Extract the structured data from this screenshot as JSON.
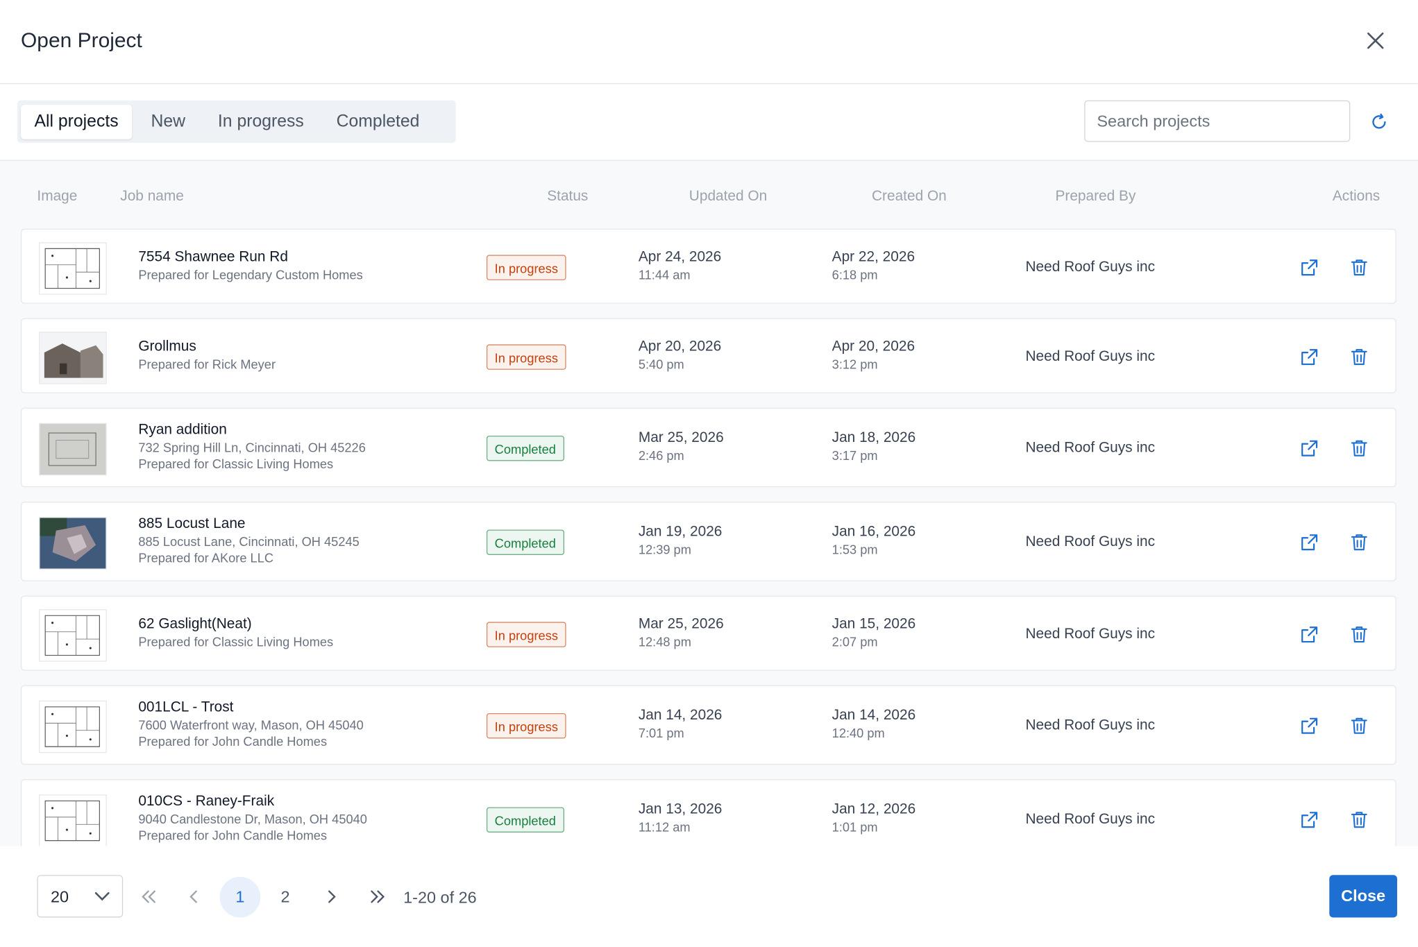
{
  "header": {
    "title": "Open Project"
  },
  "tabs": [
    "All projects",
    "New",
    "In progress",
    "Completed"
  ],
  "search_placeholder": "Search projects",
  "table": {
    "columns": [
      "Image",
      "Job name",
      "Status",
      "Updated On",
      "Created On",
      "Prepared By",
      "Actions"
    ],
    "rows": [
      {
        "name": "7554 Shawnee Run Rd",
        "details": [
          "Prepared for Legendary Custom Homes"
        ],
        "status": "In progress",
        "status_color": "#c2410c",
        "updated_date": "Apr 24, 2026",
        "updated_time": "11:44 am",
        "created_date": "Apr 22, 2026",
        "created_time": "6:18 pm",
        "prepared_by": "Need Roof Guys inc"
      },
      {
        "name": "Grollmus",
        "details": [
          "Prepared for Rick Meyer"
        ],
        "status": "In progress",
        "status_color": "#c2410c",
        "updated_date": "Apr 20, 2026",
        "updated_time": "5:40 pm",
        "created_date": "Apr 20, 2026",
        "created_time": "3:12 pm",
        "prepared_by": "Need Roof Guys inc"
      },
      {
        "name": "Ryan addition",
        "details": [
          "732 Spring Hill Ln, Cincinnati, OH 45226",
          "Prepared for Classic Living Homes"
        ],
        "status": "Completed",
        "status_color": "#15803d",
        "updated_date": "Mar 25, 2026",
        "updated_time": "2:46 pm",
        "created_date": "Jan 18, 2026",
        "created_time": "3:17 pm",
        "prepared_by": "Need Roof Guys inc"
      },
      {
        "name": "885 Locust Lane",
        "details": [
          "885 Locust Lane, Cincinnati, OH 45245",
          "Prepared for AKore LLC"
        ],
        "status": "Completed",
        "status_color": "#15803d",
        "updated_date": "Jan 19, 2026",
        "updated_time": "12:39 pm",
        "created_date": "Jan 16, 2026",
        "created_time": "1:53 pm",
        "prepared_by": "Need Roof Guys inc"
      },
      {
        "name": "62 Gaslight(Neat)",
        "details": [
          "Prepared for Classic Living Homes"
        ],
        "status": "In progress",
        "status_color": "#c2410c",
        "updated_date": "Mar 25, 2026",
        "updated_time": "12:48 pm",
        "created_date": "Jan 15, 2026",
        "created_time": "2:07 pm",
        "prepared_by": "Need Roof Guys inc"
      },
      {
        "name": "001LCL - Trost",
        "details": [
          "7600 Waterfront way, Mason, OH 45040",
          "Prepared for John Candle Homes"
        ],
        "status": "In progress",
        "status_color": "#c2410c",
        "updated_date": "Jan 14, 2026",
        "updated_time": "7:01 pm",
        "created_date": "Jan 14, 2026",
        "created_time": "12:40 pm",
        "prepared_by": "Need Roof Guys inc"
      },
      {
        "name": "010CS - Raney-Fraik",
        "details": [
          "9040 Candlestone Dr, Mason, OH 45040",
          "Prepared for John Candle Homes"
        ],
        "status": "Completed",
        "status_color": "#15803d",
        "updated_date": "Jan 13, 2026",
        "updated_time": "11:12 am",
        "created_date": "Jan 12, 2026",
        "created_time": "1:01 pm",
        "prepared_by": "Need Roof Guys inc"
      }
    ]
  },
  "pagination": {
    "page_size": "20",
    "pages": [
      "1",
      "2"
    ],
    "current": 0,
    "range": "1-20 of 26"
  },
  "close_button": "Close"
}
